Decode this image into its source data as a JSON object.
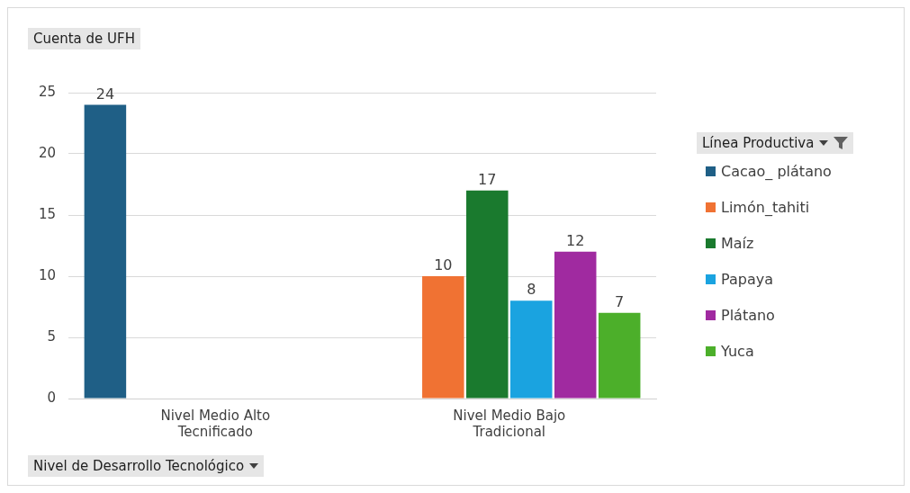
{
  "chart_data": {
    "type": "bar",
    "ylabel": "Cuenta de UFH",
    "xlabel": "Nivel de Desarrollo Tecnológico",
    "legend_title": "Línea Productiva",
    "categories": [
      "Nivel Medio Alto Tecnificado",
      "Nivel Medio Bajo Tradicional"
    ],
    "series": [
      {
        "name": "Cacao_ plátano",
        "color": "#1f5f86",
        "values": [
          24,
          null
        ]
      },
      {
        "name": "Limón_tahiti",
        "color": "#f07233",
        "values": [
          null,
          10
        ]
      },
      {
        "name": "Maíz",
        "color": "#1a7a2e",
        "values": [
          null,
          17
        ]
      },
      {
        "name": "Papaya",
        "color": "#1aa3e0",
        "values": [
          null,
          8
        ]
      },
      {
        "name": "Plátano",
        "color": "#a02aa0",
        "values": [
          null,
          12
        ]
      },
      {
        "name": "Yuca",
        "color": "#4caf2a",
        "values": [
          null,
          7
        ]
      }
    ],
    "ylim": [
      0,
      25
    ],
    "yticks": [
      0,
      5,
      10,
      15,
      20,
      25
    ],
    "grid": "y",
    "legend": "right",
    "data_labels": true
  }
}
